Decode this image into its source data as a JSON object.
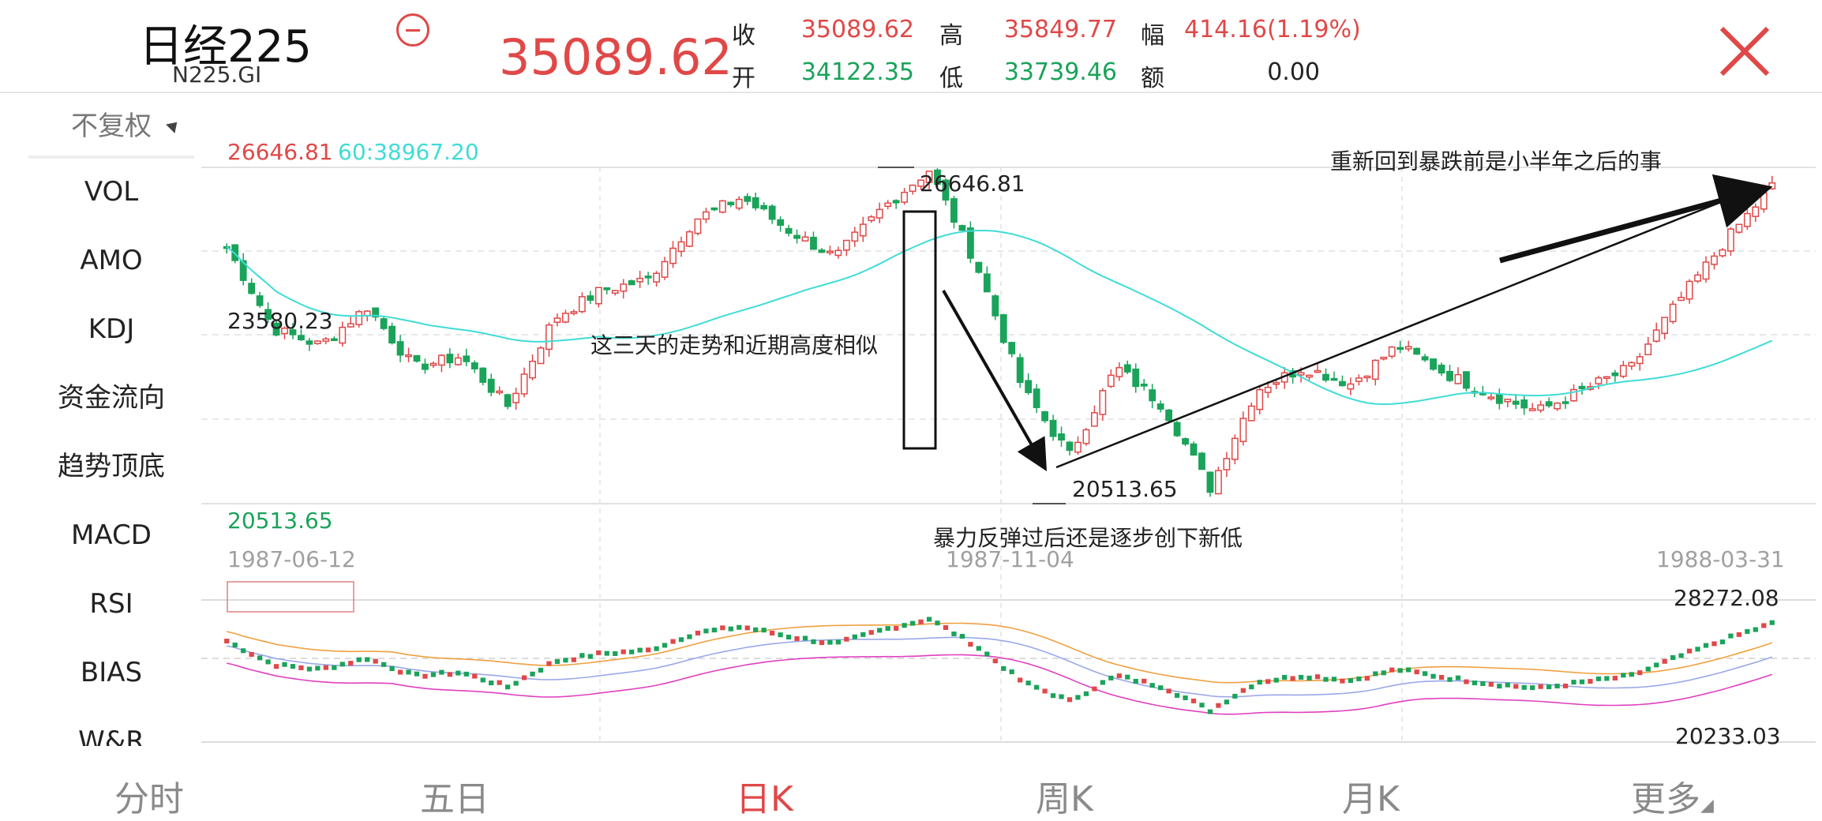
{
  "header": {
    "title": "日经225",
    "code": "N225.GI",
    "price": "35089.62",
    "quote": [
      {
        "label": "收",
        "value": "35089.62",
        "color": "red"
      },
      {
        "label": "高",
        "value": "35849.77",
        "color": "red"
      },
      {
        "label": "幅",
        "value": "414.16(1.19%)",
        "color": "red"
      },
      {
        "label": "开",
        "value": "34122.35",
        "color": "green"
      },
      {
        "label": "低",
        "value": "33739.46",
        "color": "green"
      },
      {
        "label": "额",
        "value": "0.00",
        "color": "black"
      }
    ]
  },
  "sidebar": {
    "adjust": "不复权",
    "items": [
      "VOL",
      "AMO",
      "KDJ",
      "资金流向",
      "趋势顶底",
      "MACD",
      "RSI",
      "BIAS",
      "W&R"
    ]
  },
  "tabs": [
    {
      "label": "分时",
      "active": false
    },
    {
      "label": "五日",
      "active": false
    },
    {
      "label": "日K",
      "active": true
    },
    {
      "label": "周K",
      "active": false
    },
    {
      "label": "月K",
      "active": false
    },
    {
      "label": "更多",
      "active": false
    }
  ],
  "colors": {
    "up": "#e04848",
    "down": "#1aa35a",
    "ma60": "#40dcd6",
    "rsi1": "#f0a040",
    "rsi2": "#9aa8e8",
    "rsi3": "#e040c0"
  },
  "chart_data": [
    {
      "type": "candlestick",
      "period": "daily",
      "ylim": [
        20513.65,
        26646.81
      ],
      "header_labels": {
        "max": "26646.81",
        "ma": "60:38967.20",
        "min": "20513.65",
        "mid": "23580.23"
      },
      "date_labels": [
        "1987-06-12",
        "1987-11-04",
        "1988-03-31"
      ],
      "annotations": {
        "high": "26646.81",
        "low": "20513.65",
        "three_days": "这三天的走势和近期高度相似",
        "rebound": "暴力反弹过后还是逐步创下新低",
        "recovery": "重新回到暴跌前是小半年之后的事"
      },
      "close_anchors": [
        25200,
        23700,
        23400,
        24100,
        23000,
        23200,
        22300,
        23900,
        24400,
        24600,
        25700,
        26100,
        25500,
        25000,
        25900,
        26600,
        24900,
        22600,
        21400,
        23000,
        22300,
        20800,
        22600,
        23000,
        22700,
        23400,
        22900,
        22500,
        22200,
        22600,
        23000,
        24200,
        25300,
        26300
      ]
    },
    {
      "type": "line",
      "name": "lower panel",
      "labels": {
        "max": "28272.08",
        "min": "20233.03"
      }
    }
  ]
}
